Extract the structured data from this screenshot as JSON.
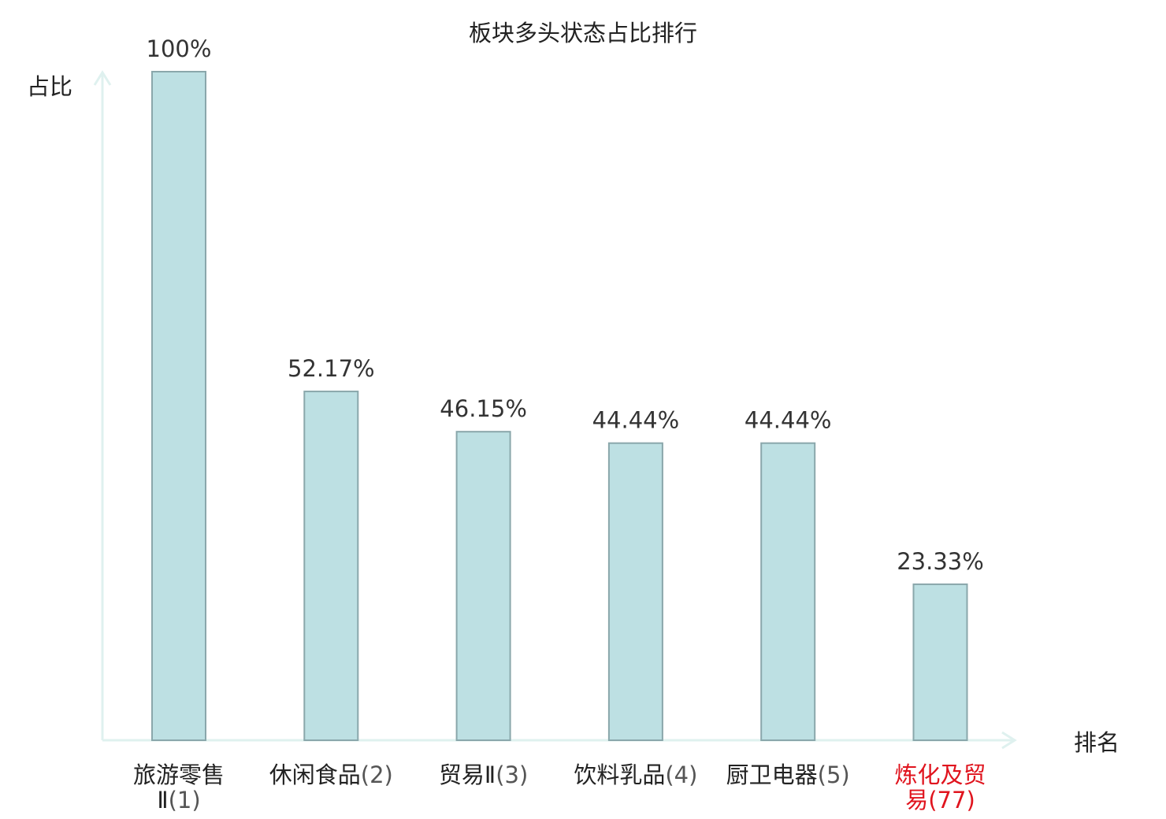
{
  "chart_data": {
    "type": "bar",
    "title": "板块多头状态占比排行",
    "xlabel": "排名",
    "ylabel": "占比",
    "ylim": [
      0,
      100
    ],
    "grid": false,
    "categories": [
      {
        "name": "旅游零售",
        "name2": "Ⅱ",
        "rank": "(1)",
        "highlight": false
      },
      {
        "name": "休闲食品",
        "name2": "",
        "rank": "(2)",
        "highlight": false
      },
      {
        "name": "贸易Ⅱ",
        "name2": "",
        "rank": "(3)",
        "highlight": false
      },
      {
        "name": "饮料乳品",
        "name2": "",
        "rank": "(4)",
        "highlight": false
      },
      {
        "name": "厨卫电器",
        "name2": "",
        "rank": "(5)",
        "highlight": false
      },
      {
        "name": "炼化及贸",
        "name2": "易",
        "rank": "(77)",
        "highlight": true
      }
    ],
    "values": [
      100,
      52.17,
      46.15,
      44.44,
      44.44,
      23.33
    ],
    "value_labels": [
      "100%",
      "52.17%",
      "46.15%",
      "44.44%",
      "44.44%",
      "23.33%"
    ],
    "colors": {
      "bar_fill": "#bde0e3",
      "bar_stroke": "#8aa7ab",
      "axis": "#dff1ef",
      "text": "#222222",
      "label_text": "#333333",
      "highlight": "#e0141e"
    }
  }
}
